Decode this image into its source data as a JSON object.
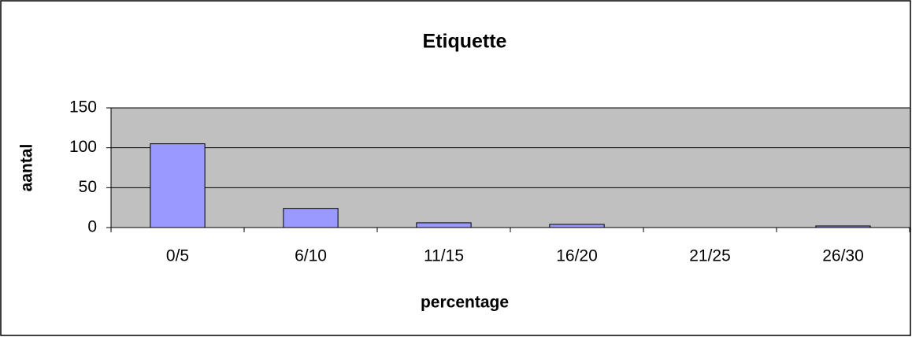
{
  "chart_data": {
    "type": "bar",
    "title": "Etiquette",
    "x_label": "percentage",
    "y_label": "aantal",
    "categories": [
      "0/5",
      "6/10",
      "11/15",
      "16/20",
      "21/25",
      "26/30"
    ],
    "values": [
      105,
      24,
      6,
      4,
      0,
      2
    ],
    "color": "#9999ff",
    "ylim": [
      0,
      150
    ],
    "yticks": [
      0,
      50,
      100,
      150
    ],
    "grid": true
  }
}
